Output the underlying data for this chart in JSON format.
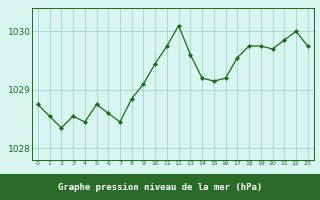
{
  "x": [
    0,
    1,
    2,
    3,
    4,
    5,
    6,
    7,
    8,
    9,
    10,
    11,
    12,
    13,
    14,
    15,
    16,
    17,
    18,
    19,
    20,
    21,
    22,
    23
  ],
  "y": [
    1028.75,
    1028.55,
    1028.35,
    1028.55,
    1028.45,
    1028.75,
    1028.6,
    1028.45,
    1028.85,
    1029.1,
    1029.45,
    1029.75,
    1030.1,
    1029.6,
    1029.2,
    1029.15,
    1029.2,
    1029.55,
    1029.75,
    1029.75,
    1029.7,
    1029.85,
    1030.0,
    1029.75
  ],
  "line_color": "#1a6b1a",
  "marker_color": "#1a6b1a",
  "bg_color": "#d8f5f0",
  "grid_color": "#aad8d0",
  "xlabel": "Graphe pression niveau de la mer (hPa)",
  "xlabel_text_color": "#ffffff",
  "xlabel_bg_color": "#2a6b2a",
  "ylim": [
    1027.8,
    1030.4
  ],
  "yticks": [
    1028,
    1029,
    1030
  ],
  "xticks": [
    0,
    1,
    2,
    3,
    4,
    5,
    6,
    7,
    8,
    9,
    10,
    11,
    12,
    13,
    14,
    15,
    16,
    17,
    18,
    19,
    20,
    21,
    22,
    23
  ],
  "tick_color": "#1a6b1a",
  "spine_color": "#1a6b1a"
}
